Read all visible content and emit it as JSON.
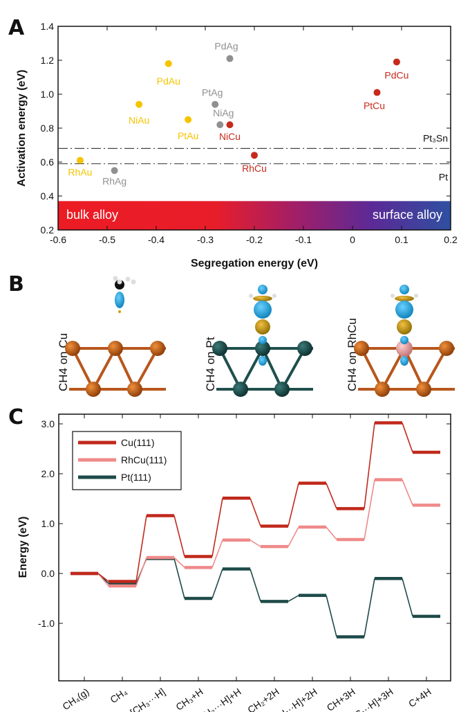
{
  "panels": {
    "a": "A",
    "b": "B",
    "c": "C"
  },
  "colors": {
    "Au": "#f5c400",
    "Ag": "#909090",
    "Cu": "#c62a1c",
    "Cu111": "#c0291b",
    "RhCu111": "#ef8a8a",
    "Pt111": "#1d4a48"
  },
  "chart_data": [
    {
      "type": "scatter",
      "xlabel": "Segregation energy (eV)",
      "ylabel": "Activation energy (eV)",
      "xlim": [
        -0.6,
        0.2
      ],
      "ylim": [
        0.2,
        1.4
      ],
      "xticks": [
        "-0.6",
        "-0.5",
        "-0.4",
        "-0.3",
        "-0.2",
        "-0.1",
        "0",
        "0.1",
        "0.2"
      ],
      "yticks": [
        "0.2",
        "0.4",
        "0.6",
        "0.8",
        "1.0",
        "1.2",
        "1.4"
      ],
      "grid": false,
      "points": [
        {
          "label": "RhAu",
          "x": -0.555,
          "y": 0.61,
          "group": "Au"
        },
        {
          "label": "RhAg",
          "x": -0.485,
          "y": 0.55,
          "group": "Ag"
        },
        {
          "label": "NiAu",
          "x": -0.435,
          "y": 0.94,
          "group": "Au"
        },
        {
          "label": "PdAu",
          "x": -0.375,
          "y": 1.18,
          "group": "Au"
        },
        {
          "label": "PtAu",
          "x": -0.335,
          "y": 0.85,
          "group": "Au"
        },
        {
          "label": "PtAg",
          "x": -0.28,
          "y": 0.94,
          "group": "Ag"
        },
        {
          "label": "NiAg",
          "x": -0.27,
          "y": 0.82,
          "group": "Ag"
        },
        {
          "label": "PdAg",
          "x": -0.25,
          "y": 1.21,
          "group": "Ag"
        },
        {
          "label": "NiCu",
          "x": -0.25,
          "y": 0.82,
          "group": "Cu"
        },
        {
          "label": "RhCu",
          "x": -0.2,
          "y": 0.64,
          "group": "Cu"
        },
        {
          "label": "PtCu",
          "x": 0.05,
          "y": 1.01,
          "group": "Cu"
        },
        {
          "label": "PdCu",
          "x": 0.09,
          "y": 1.19,
          "group": "Cu"
        }
      ],
      "reference_lines": [
        {
          "label": "Pt₃Sn",
          "y": 0.68
        },
        {
          "label": "Pt",
          "y": 0.59
        }
      ],
      "band": {
        "y_range": [
          0.2,
          0.37
        ],
        "left_label": "bulk alloy",
        "right_label": "surface alloy",
        "left_color": "#ec1c24",
        "mid_color": "#a0206a",
        "right_color": "#2f4ea0"
      }
    },
    {
      "type": "line",
      "xlabel": "",
      "ylabel": "Energy (eV)",
      "ylim": [
        -1.4,
        3.2
      ],
      "yticks": [
        "-1.0",
        "0.0",
        "1.0",
        "2.0",
        "3.0"
      ],
      "yticks_values": [
        -1,
        0,
        1,
        2,
        3
      ],
      "categories": [
        "CH₄(g)",
        "CH₄",
        "[CH₃···H]",
        "CH₃+H",
        "[CH₂···H]+H",
        "CH₂+2H",
        "[CH···H]+2H",
        "CH+3H",
        "[C···H]+3H",
        "C+4H"
      ],
      "legend": "top-left",
      "series": [
        {
          "name": "Cu(111)",
          "color_key": "Cu111",
          "values": [
            0,
            -0.16,
            1.16,
            0.34,
            1.51,
            0.95,
            1.81,
            1.3,
            3.02,
            2.43
          ]
        },
        {
          "name": "RhCu(111)",
          "color_key": "RhCu111",
          "values": [
            0,
            -0.25,
            0.32,
            0.12,
            0.67,
            0.54,
            0.93,
            0.68,
            1.88,
            1.37
          ]
        },
        {
          "name": "Pt(111)",
          "color_key": "Pt111",
          "values": [
            0,
            -0.2,
            0.3,
            -0.5,
            0.09,
            -0.56,
            -0.44,
            -1.27,
            -0.1,
            -0.86
          ]
        }
      ]
    }
  ],
  "structures": [
    {
      "label": "CH4 on Cu",
      "surface": "Cu"
    },
    {
      "label": "CH4 on Pt",
      "surface": "Pt"
    },
    {
      "label": "CH4 on RhCu",
      "surface": "RhCu"
    }
  ]
}
